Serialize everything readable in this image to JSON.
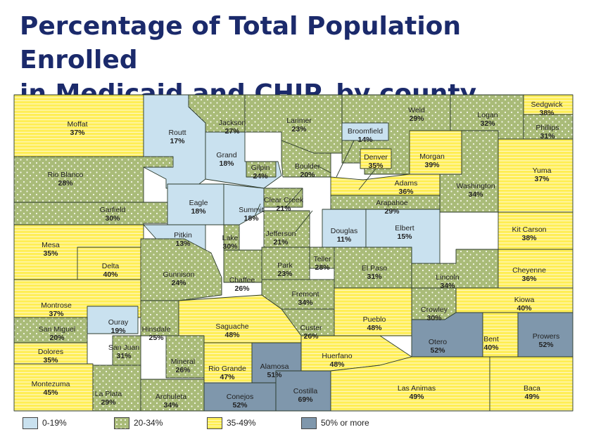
{
  "title_line1": "Percentage of Total Population Enrolled",
  "title_line2": "in Medicaid and CHIP, by county",
  "categories": [
    {
      "key": "c1",
      "label": "0-19%",
      "color": "#c9e1ef",
      "pattern": "solid"
    },
    {
      "key": "c2",
      "label": "20-34%",
      "color": "#a9bb78",
      "pattern": "dots"
    },
    {
      "key": "c3",
      "label": "35-49%",
      "color": "#ffee55",
      "pattern": "lines"
    },
    {
      "key": "c4",
      "label": "50% or more",
      "color": "#7f97ac",
      "pattern": "solid"
    }
  ],
  "counties": [
    {
      "name": "Moffat",
      "pct": "37%",
      "cat": "c3"
    },
    {
      "name": "Routt",
      "pct": "17%",
      "cat": "c1"
    },
    {
      "name": "Jackson",
      "pct": "27%",
      "cat": "c2"
    },
    {
      "name": "Larimer",
      "pct": "23%",
      "cat": "c2"
    },
    {
      "name": "Weld",
      "pct": "29%",
      "cat": "c2"
    },
    {
      "name": "Logan",
      "pct": "32%",
      "cat": "c2"
    },
    {
      "name": "Sedgwick",
      "pct": "38%",
      "cat": "c3"
    },
    {
      "name": "Phillips",
      "pct": "31%",
      "cat": "c2"
    },
    {
      "name": "Rio Blanco",
      "pct": "28%",
      "cat": "c2"
    },
    {
      "name": "Grand",
      "pct": "18%",
      "cat": "c1"
    },
    {
      "name": "Gilpin",
      "pct": "24%",
      "cat": "c2"
    },
    {
      "name": "Boulder",
      "pct": "20%",
      "cat": "c2"
    },
    {
      "name": "Broomfield",
      "pct": "14%",
      "cat": "c1"
    },
    {
      "name": "Denver",
      "pct": "35%",
      "cat": "c3"
    },
    {
      "name": "Morgan",
      "pct": "39%",
      "cat": "c3"
    },
    {
      "name": "Yuma",
      "pct": "37%",
      "cat": "c3"
    },
    {
      "name": "Garfield",
      "pct": "30%",
      "cat": "c2"
    },
    {
      "name": "Eagle",
      "pct": "18%",
      "cat": "c1"
    },
    {
      "name": "Summit",
      "pct": "18%",
      "cat": "c1"
    },
    {
      "name": "Clear Creek",
      "pct": "21%",
      "cat": "c2"
    },
    {
      "name": "Adams",
      "pct": "36%",
      "cat": "c3"
    },
    {
      "name": "Arapahoe",
      "pct": "29%",
      "cat": "c2"
    },
    {
      "name": "Washington",
      "pct": "34%",
      "cat": "c2"
    },
    {
      "name": "Mesa",
      "pct": "35%",
      "cat": "c3"
    },
    {
      "name": "Pitkin",
      "pct": "13%",
      "cat": "c1"
    },
    {
      "name": "Lake",
      "pct": "30%",
      "cat": "c2"
    },
    {
      "name": "Jefferson",
      "pct": "21%",
      "cat": "c2"
    },
    {
      "name": "Douglas",
      "pct": "11%",
      "cat": "c1"
    },
    {
      "name": "Elbert",
      "pct": "15%",
      "cat": "c1"
    },
    {
      "name": "Kit Carson",
      "pct": "38%",
      "cat": "c3"
    },
    {
      "name": "Delta",
      "pct": "40%",
      "cat": "c3"
    },
    {
      "name": "Gunnison",
      "pct": "24%",
      "cat": "c2"
    },
    {
      "name": "Chaffee",
      "pct": "26%",
      "cat": "c2"
    },
    {
      "name": "Park",
      "pct": "23%",
      "cat": "c2"
    },
    {
      "name": "Teller",
      "pct": "28%",
      "cat": "c2"
    },
    {
      "name": "El Paso",
      "pct": "31%",
      "cat": "c2"
    },
    {
      "name": "Lincoln",
      "pct": "34%",
      "cat": "c2"
    },
    {
      "name": "Cheyenne",
      "pct": "36%",
      "cat": "c3"
    },
    {
      "name": "Montrose",
      "pct": "37%",
      "cat": "c3"
    },
    {
      "name": "Fremont",
      "pct": "34%",
      "cat": "c2"
    },
    {
      "name": "Kiowa",
      "pct": "40%",
      "cat": "c3"
    },
    {
      "name": "Ouray",
      "pct": "19%",
      "cat": "c1"
    },
    {
      "name": "Crowley",
      "pct": "30%",
      "cat": "c2"
    },
    {
      "name": "San Miguel",
      "pct": "20%",
      "cat": "c2"
    },
    {
      "name": "Hinsdale",
      "pct": "25%",
      "cat": "c2"
    },
    {
      "name": "Saguache",
      "pct": "48%",
      "cat": "c3"
    },
    {
      "name": "Custer",
      "pct": "26%",
      "cat": "c2"
    },
    {
      "name": "Pueblo",
      "pct": "48%",
      "cat": "c3"
    },
    {
      "name": "Otero",
      "pct": "52%",
      "cat": "c4"
    },
    {
      "name": "Bent",
      "pct": "40%",
      "cat": "c3"
    },
    {
      "name": "Prowers",
      "pct": "52%",
      "cat": "c4"
    },
    {
      "name": "Dolores",
      "pct": "35%",
      "cat": "c3"
    },
    {
      "name": "San Juan",
      "pct": "31%",
      "cat": "c2"
    },
    {
      "name": "Mineral",
      "pct": "26%",
      "cat": "c2"
    },
    {
      "name": "Rio Grande",
      "pct": "47%",
      "cat": "c3"
    },
    {
      "name": "Alamosa",
      "pct": "51%",
      "cat": "c4"
    },
    {
      "name": "Huerfano",
      "pct": "48%",
      "cat": "c3"
    },
    {
      "name": "Montezuma",
      "pct": "45%",
      "cat": "c3"
    },
    {
      "name": "La Plata",
      "pct": "29%",
      "cat": "c2"
    },
    {
      "name": "Archuleta",
      "pct": "34%",
      "cat": "c2"
    },
    {
      "name": "Conejos",
      "pct": "52%",
      "cat": "c4"
    },
    {
      "name": "Costilla",
      "pct": "69%",
      "cat": "c4"
    },
    {
      "name": "Las Animas",
      "pct": "49%",
      "cat": "c3"
    },
    {
      "name": "Baca",
      "pct": "49%",
      "cat": "c3"
    }
  ]
}
